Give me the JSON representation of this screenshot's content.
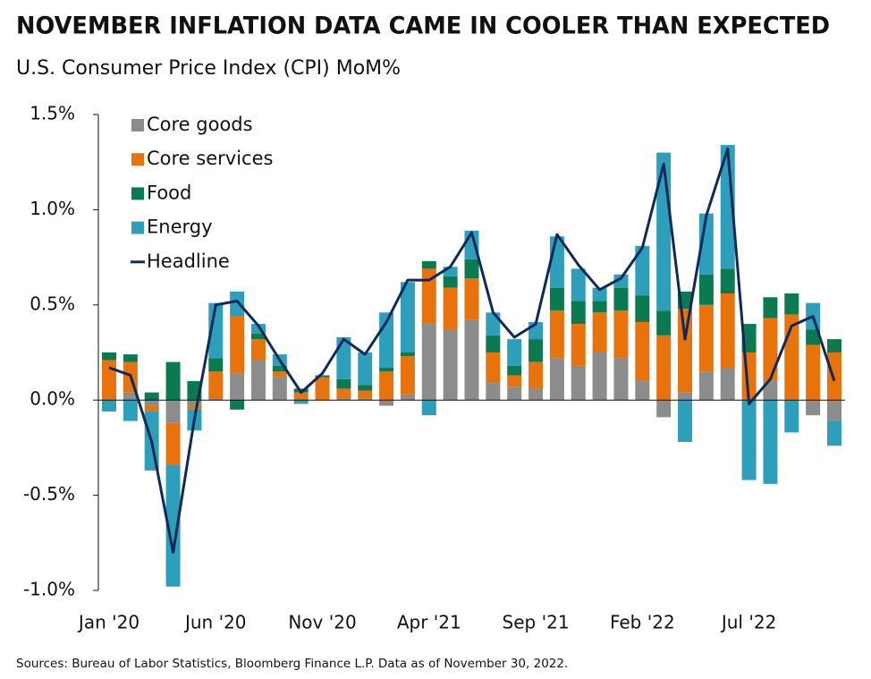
{
  "chart_data": {
    "type": "bar",
    "title": "NOVEMBER INFLATION DATA CAME IN COOLER THAN EXPECTED",
    "subtitle": "U.S. Consumer Price Index (CPI) MoM%",
    "source": "Sources: Bureau of Labor Statistics, Bloomberg Finance L.P. Data as of November 30, 2022.",
    "categories": [
      "Jan '20",
      null,
      null,
      null,
      null,
      "Jun '20",
      null,
      null,
      null,
      null,
      "Nov '20",
      null,
      null,
      null,
      null,
      "Apr '21",
      null,
      null,
      null,
      null,
      "Sep '21",
      null,
      null,
      null,
      null,
      "Feb '22",
      null,
      null,
      null,
      null,
      "Jul '22",
      null,
      null,
      null,
      null
    ],
    "series": [
      {
        "name": "Core goods",
        "color": "#8c8c8c",
        "type": "bar",
        "values": [
          0.0,
          0.04,
          -0.03,
          -0.12,
          -0.03,
          0.01,
          0.14,
          0.21,
          0.12,
          0.0,
          0.0,
          0.01,
          0.01,
          -0.03,
          0.03,
          0.4,
          0.37,
          0.42,
          0.09,
          0.07,
          0.06,
          0.22,
          0.18,
          0.25,
          0.22,
          0.1,
          -0.09,
          0.04,
          0.15,
          0.17,
          0.0,
          0.1,
          0.0,
          -0.08,
          -0.11
        ]
      },
      {
        "name": "Core services",
        "color": "#e8730c",
        "type": "bar",
        "values": [
          0.21,
          0.16,
          -0.03,
          -0.22,
          -0.02,
          0.14,
          0.3,
          0.11,
          0.03,
          0.04,
          0.12,
          0.05,
          0.04,
          0.15,
          0.2,
          0.29,
          0.22,
          0.22,
          0.16,
          0.06,
          0.14,
          0.25,
          0.22,
          0.21,
          0.25,
          0.31,
          0.34,
          0.44,
          0.35,
          0.39,
          0.25,
          0.33,
          0.45,
          0.29,
          0.25
        ]
      },
      {
        "name": "Food",
        "color": "#0b7a50",
        "type": "bar",
        "values": [
          0.04,
          0.04,
          0.04,
          0.2,
          0.1,
          0.07,
          -0.05,
          0.03,
          0.03,
          0.02,
          0.01,
          0.05,
          0.03,
          0.02,
          0.02,
          0.04,
          0.06,
          0.1,
          0.09,
          0.05,
          0.12,
          0.12,
          0.12,
          0.06,
          0.12,
          0.14,
          0.13,
          0.09,
          0.16,
          0.13,
          0.15,
          0.11,
          0.11,
          0.08,
          0.07
        ]
      },
      {
        "name": "Energy",
        "color": "#2e9fba",
        "type": "bar",
        "values": [
          -0.06,
          -0.11,
          -0.31,
          -0.64,
          -0.11,
          0.29,
          0.13,
          0.05,
          0.06,
          -0.02,
          0.0,
          0.22,
          0.17,
          0.29,
          0.37,
          -0.08,
          0.05,
          0.15,
          0.12,
          0.14,
          0.09,
          0.27,
          0.17,
          0.07,
          0.07,
          0.26,
          0.83,
          -0.22,
          0.32,
          0.65,
          -0.42,
          -0.44,
          -0.17,
          0.14,
          -0.13
        ]
      },
      {
        "name": "Headline",
        "color": "#0d2a5a",
        "type": "line",
        "values": [
          0.17,
          0.13,
          -0.22,
          -0.8,
          -0.1,
          0.5,
          0.52,
          0.39,
          0.21,
          0.04,
          0.14,
          0.32,
          0.24,
          0.41,
          0.63,
          0.63,
          0.7,
          0.88,
          0.46,
          0.33,
          0.4,
          0.87,
          0.71,
          0.58,
          0.64,
          0.8,
          1.24,
          0.32,
          0.97,
          1.32,
          -0.02,
          0.11,
          0.39,
          0.44,
          0.1
        ]
      }
    ],
    "ylim": [
      -1.0,
      1.5
    ],
    "yticks": [
      {
        "value": -1.0,
        "label": "-1.0%"
      },
      {
        "value": -0.5,
        "label": "-0.5%"
      },
      {
        "value": 0.0,
        "label": "0.0%"
      },
      {
        "value": 0.5,
        "label": "0.5%"
      },
      {
        "value": 1.0,
        "label": "1.0%"
      },
      {
        "value": 1.5,
        "label": "1.5%"
      }
    ],
    "legend": "upper left",
    "grid": false
  }
}
